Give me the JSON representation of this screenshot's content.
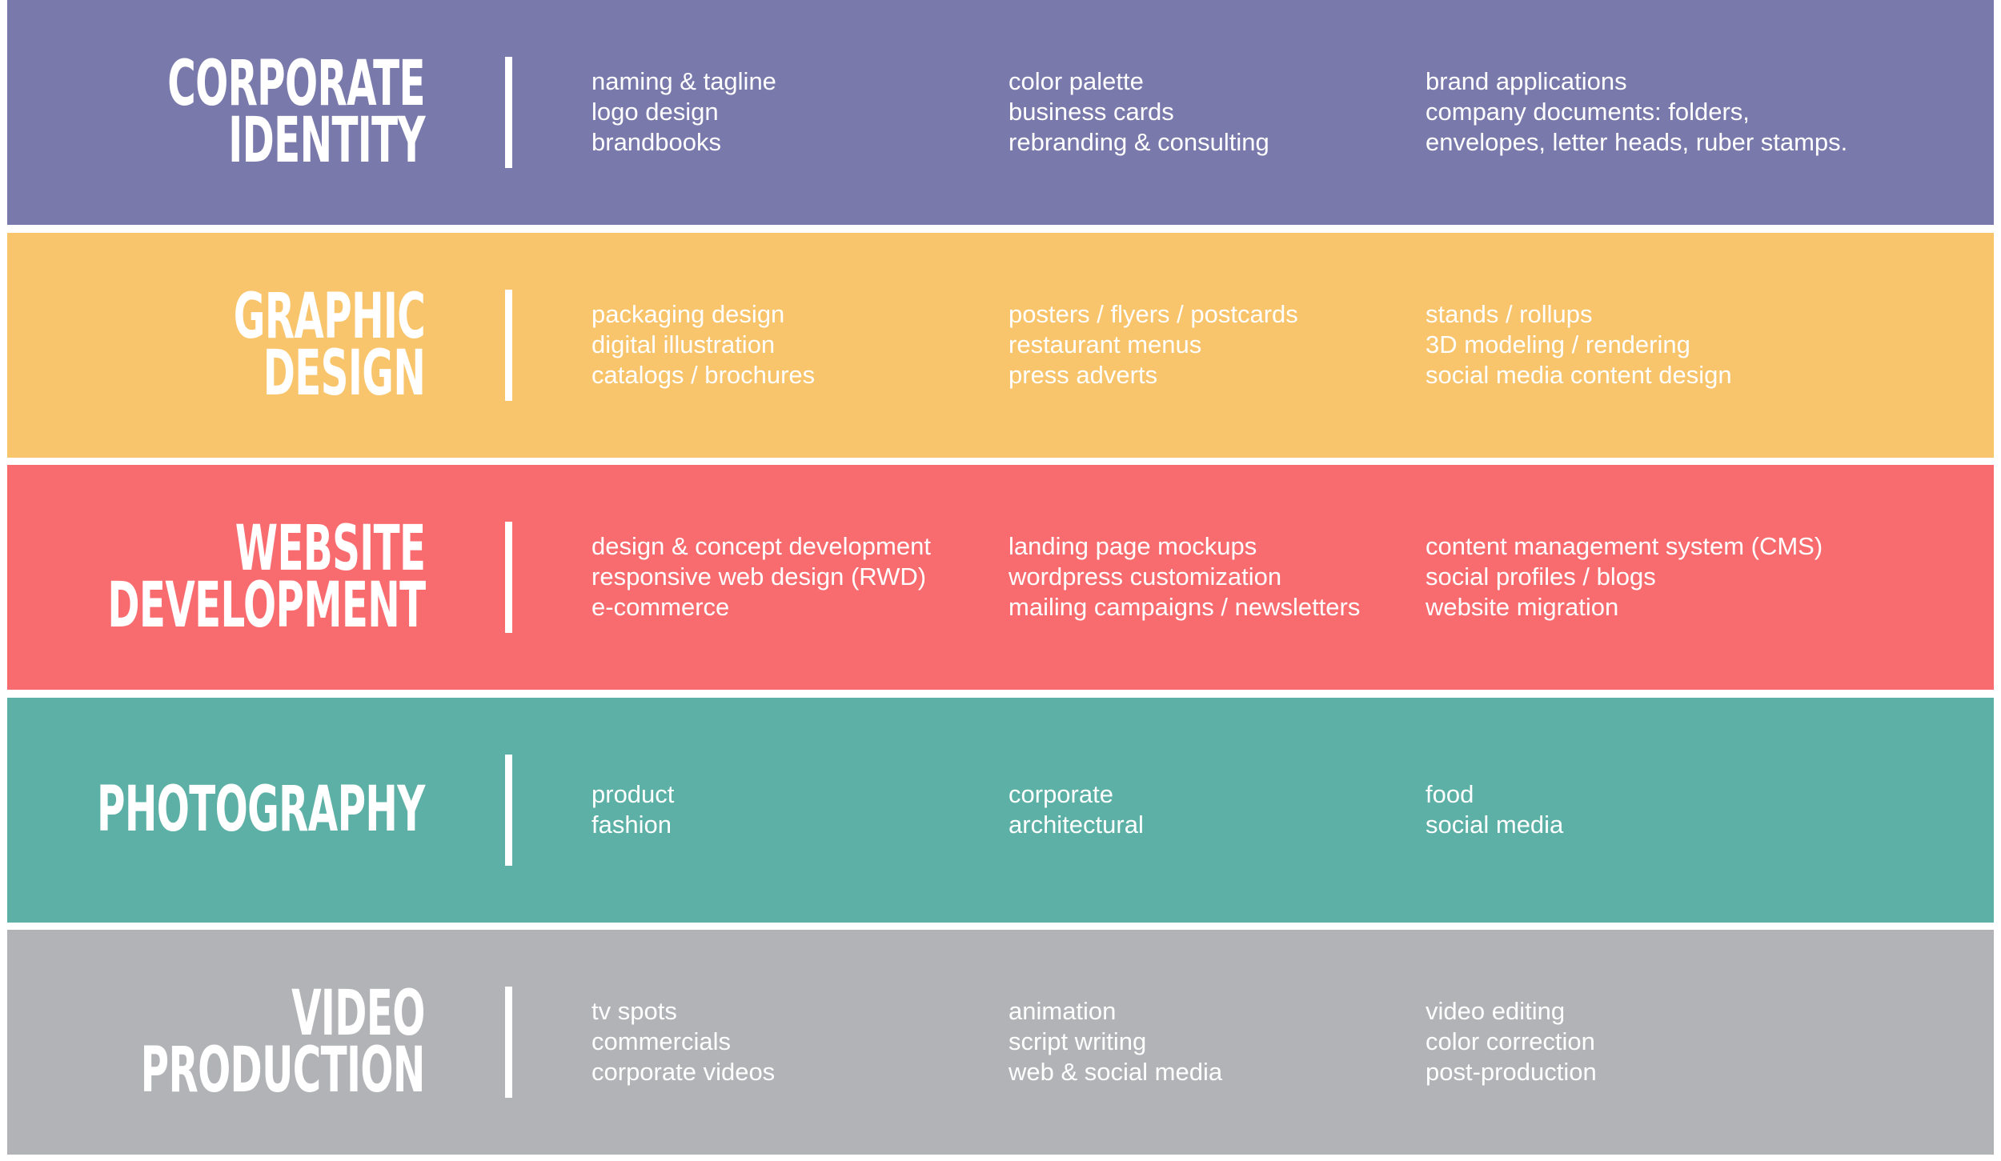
{
  "bands": [
    {
      "color": "#7979AC",
      "title_lines": [
        "CORPORATE",
        "IDENTITY"
      ],
      "columns": [
        [
          "naming & tagline",
          "logo design",
          "brandbooks"
        ],
        [
          "color palette",
          "business cards",
          "rebranding & consulting"
        ],
        [
          "brand applications",
          "company documents: folders,",
          "envelopes, letter heads, ruber stamps."
        ]
      ]
    },
    {
      "color": "#F8C46C",
      "title_lines": [
        "GRAPHIC",
        "DESIGN"
      ],
      "columns": [
        [
          "packaging design",
          "digital illustration",
          "catalogs / brochures"
        ],
        [
          "posters / flyers / postcards",
          "restaurant menus",
          "press adverts"
        ],
        [
          "stands / rollups",
          "3D modeling / rendering",
          "social media content design"
        ]
      ]
    },
    {
      "color": "#F86C6F",
      "title_lines": [
        "WEBSITE",
        "DEVELOPMENT"
      ],
      "columns": [
        [
          "design & concept development",
          "responsive web design (RWD)",
          "e-commerce"
        ],
        [
          "landing page mockups",
          "wordpress customization",
          "mailing campaigns / newsletters"
        ],
        [
          "content management system (CMS)",
          "social profiles / blogs",
          "website migration"
        ]
      ]
    },
    {
      "color": "#5DB0A6",
      "title_lines": [
        "PHOTOGRAPHY"
      ],
      "columns": [
        [
          "product",
          "fashion"
        ],
        [
          "corporate",
          "architectural"
        ],
        [
          "food",
          "social media"
        ]
      ]
    },
    {
      "color": "#B2B3B6",
      "title_lines": [
        "VIDEO",
        "PRODUCTION"
      ],
      "columns": [
        [
          "tv spots",
          "commercials",
          "corporate videos"
        ],
        [
          "animation",
          "script writing",
          "web & social media"
        ],
        [
          "video editing",
          "color correction",
          "post-production"
        ]
      ]
    }
  ]
}
